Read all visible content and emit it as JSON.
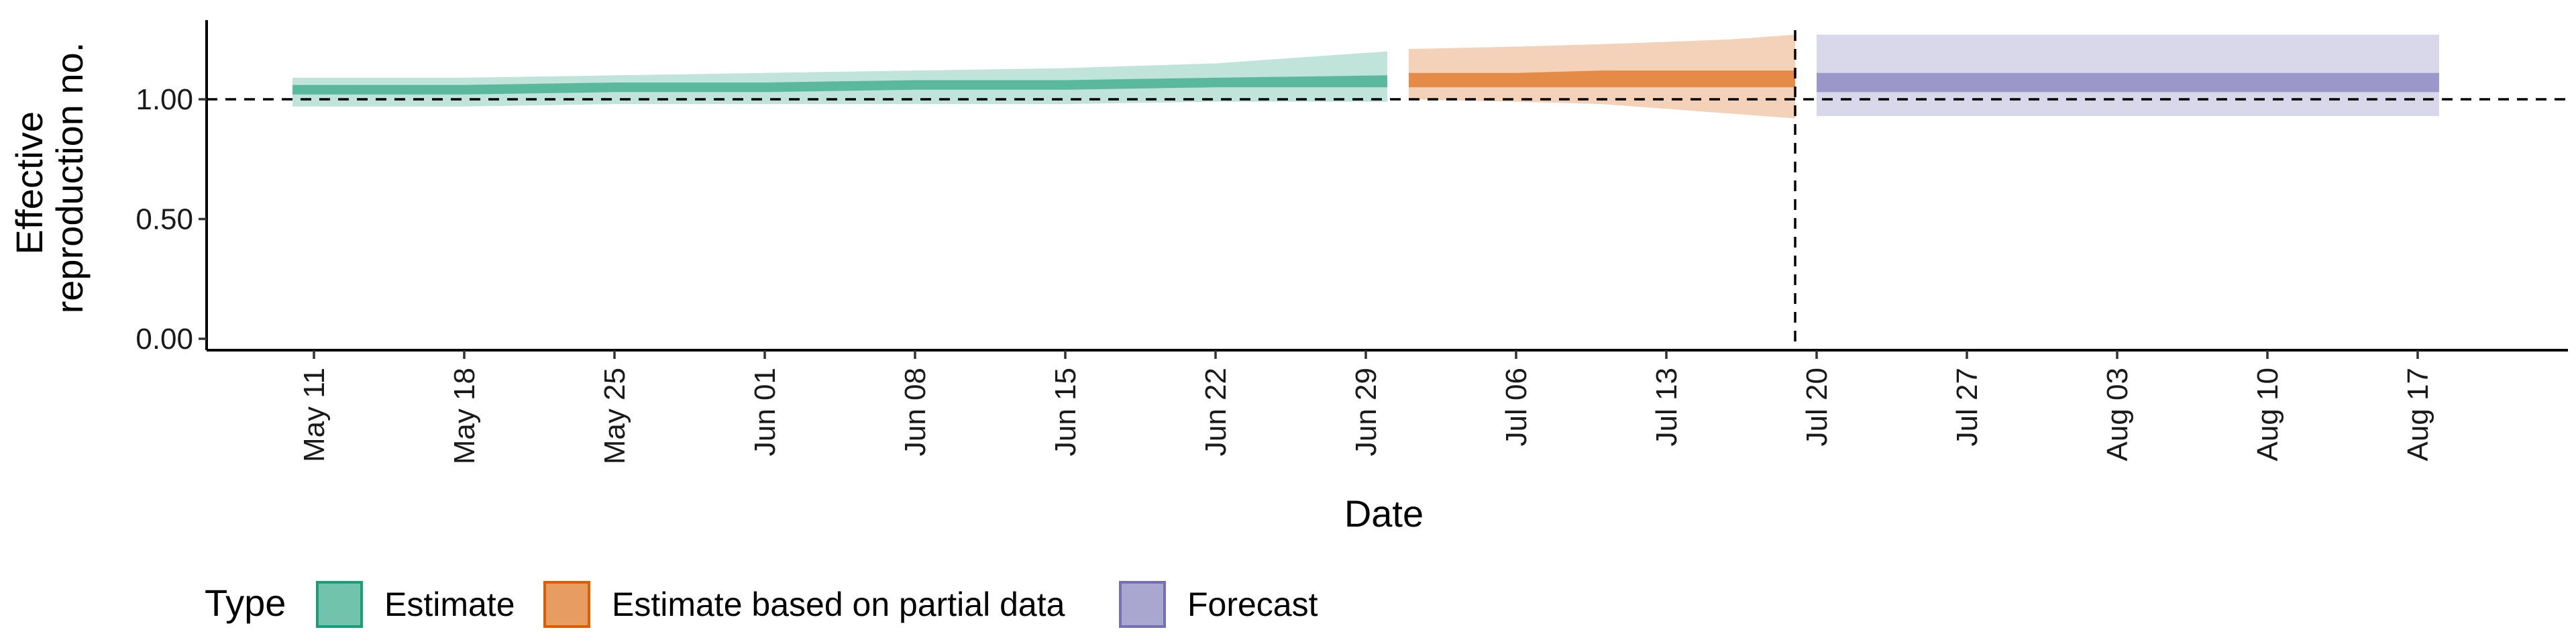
{
  "chart_data": {
    "type": "area",
    "title": "",
    "xlabel": "Date",
    "ylabel_lines": [
      "Effective",
      "reproduction no."
    ],
    "ylim": [
      0,
      1.3
    ],
    "yticks": [
      0.0,
      0.5,
      1.0
    ],
    "ytick_labels": [
      "0.00",
      "0.50",
      "1.00"
    ],
    "xlim": [
      "2020-05-06",
      "2020-08-24"
    ],
    "xticks": [
      "2020-05-11",
      "2020-05-18",
      "2020-05-25",
      "2020-06-01",
      "2020-06-08",
      "2020-06-15",
      "2020-06-22",
      "2020-06-29",
      "2020-07-06",
      "2020-07-13",
      "2020-07-20",
      "2020-07-27",
      "2020-08-03",
      "2020-08-10",
      "2020-08-17"
    ],
    "xtick_labels": [
      "May 11",
      "May 18",
      "May 25",
      "Jun 01",
      "Jun 08",
      "Jun 15",
      "Jun 22",
      "Jun 29",
      "Jul 06",
      "Jul 13",
      "Jul 20",
      "Jul 27",
      "Aug 03",
      "Aug 10",
      "Aug 17"
    ],
    "reference_hline": 1.0,
    "reference_vline": "2020-07-19",
    "grid": false,
    "legend": {
      "title": "Type",
      "placement": "bottom-left",
      "entries": [
        {
          "label": "Estimate",
          "fill": "#1b9e77",
          "stroke": "#1b9e77"
        },
        {
          "label": "Estimate based on partial data",
          "fill": "#d95f02",
          "stroke": "#d95f02"
        },
        {
          "label": "Forecast",
          "fill": "#7570b3",
          "stroke": "#7570b3"
        }
      ]
    },
    "series": [
      {
        "type_index": 0,
        "color": "#1b9e77",
        "dates": [
          "2020-05-10",
          "2020-05-18",
          "2020-05-25",
          "2020-06-01",
          "2020-06-08",
          "2020-06-15",
          "2020-06-22",
          "2020-06-30"
        ],
        "lower90": [
          0.97,
          0.97,
          0.98,
          0.98,
          0.98,
          0.98,
          0.99,
          0.99
        ],
        "upper90": [
          1.09,
          1.09,
          1.1,
          1.11,
          1.12,
          1.13,
          1.15,
          1.2
        ],
        "lower50": [
          1.02,
          1.02,
          1.03,
          1.03,
          1.04,
          1.04,
          1.05,
          1.05
        ],
        "upper50": [
          1.06,
          1.06,
          1.07,
          1.07,
          1.08,
          1.08,
          1.09,
          1.1
        ]
      },
      {
        "type_index": 1,
        "color": "#d95f02",
        "dates": [
          "2020-07-01",
          "2020-07-06",
          "2020-07-10",
          "2020-07-13",
          "2020-07-16",
          "2020-07-19"
        ],
        "lower90": [
          1.0,
          0.99,
          0.98,
          0.96,
          0.94,
          0.92
        ],
        "upper90": [
          1.21,
          1.22,
          1.23,
          1.24,
          1.25,
          1.27
        ],
        "lower50": [
          1.05,
          1.05,
          1.05,
          1.05,
          1.05,
          1.05
        ],
        "upper50": [
          1.11,
          1.11,
          1.12,
          1.12,
          1.12,
          1.12
        ]
      },
      {
        "type_index": 2,
        "color": "#7570b3",
        "dates": [
          "2020-07-20",
          "2020-08-18"
        ],
        "lower90": [
          0.93,
          0.93
        ],
        "upper90": [
          1.27,
          1.27
        ],
        "lower50": [
          1.03,
          1.03
        ],
        "upper50": [
          1.11,
          1.11
        ]
      }
    ]
  }
}
